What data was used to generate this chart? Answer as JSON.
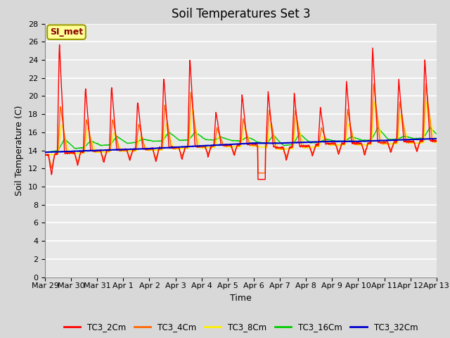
{
  "title": "Soil Temperatures Set 3",
  "xlabel": "Time",
  "ylabel": "Soil Temperature (C)",
  "ylim": [
    0,
    28
  ],
  "yticks": [
    0,
    2,
    4,
    6,
    8,
    10,
    12,
    14,
    16,
    18,
    20,
    22,
    24,
    26,
    28
  ],
  "series_colors": {
    "TC3_2Cm": "#ff0000",
    "TC3_4Cm": "#ff6600",
    "TC3_8Cm": "#ffee00",
    "TC3_16Cm": "#00cc00",
    "TC3_32Cm": "#0000cc"
  },
  "series_labels": [
    "TC3_2Cm",
    "TC3_4Cm",
    "TC3_8Cm",
    "TC3_16Cm",
    "TC3_32Cm"
  ],
  "xtick_labels": [
    "Mar 29",
    "Mar 30",
    "Mar 31",
    "Apr 1",
    "Apr 2",
    "Apr 3",
    "Apr 4",
    "Apr 5",
    "Apr 6",
    "Apr 7",
    "Apr 8",
    "Apr 9",
    "Apr 10",
    "Apr 11",
    "Apr 12",
    "Apr 13"
  ],
  "annotation_text": "SI_met",
  "background_color": "#d8d8d8",
  "plot_bg_color": "#e8e8e8",
  "grid_color": "#ffffff",
  "title_fontsize": 12,
  "axis_label_fontsize": 9,
  "tick_fontsize": 8,
  "line_width": 1.0
}
